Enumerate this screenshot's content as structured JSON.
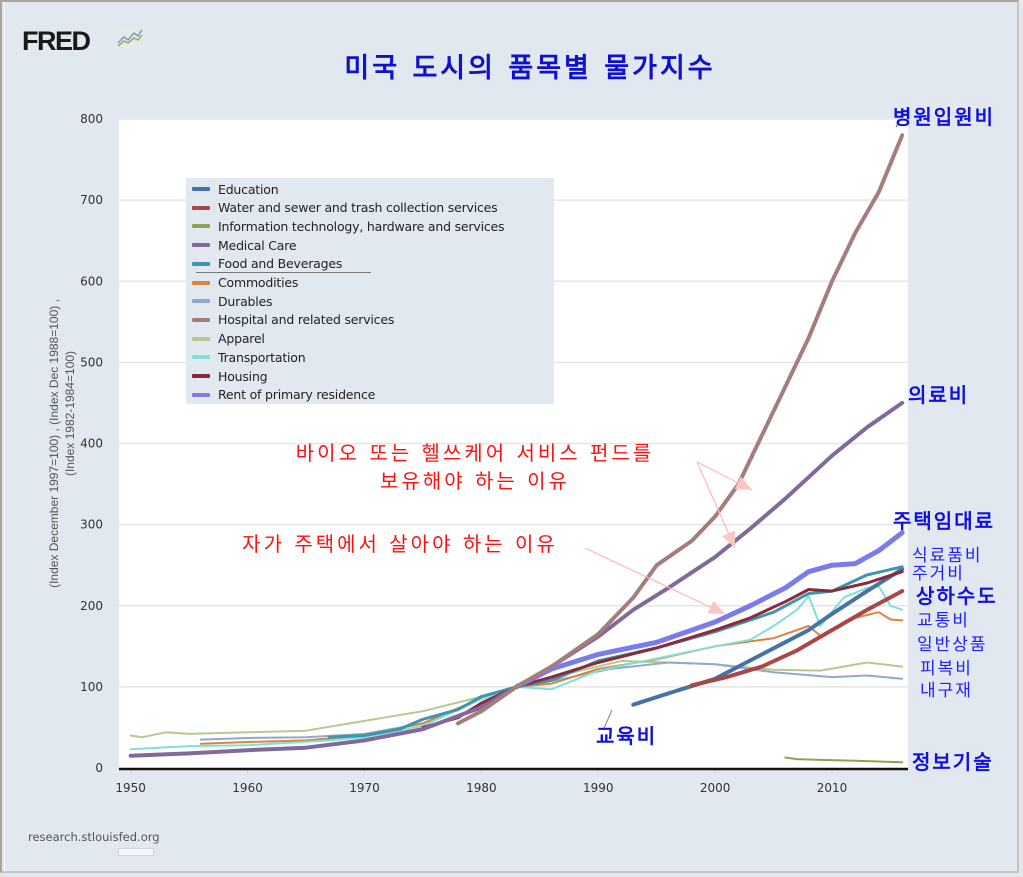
{
  "logo": {
    "text": "FRED",
    "icon": "fred-chart-icon"
  },
  "title": "미국 도시의 품목별 물가지수",
  "source": "research.stlouisfed.org",
  "annotations": {
    "hospital": "병원입원비",
    "medical": "의료비",
    "rent": "주택임대료",
    "food": "식료품비",
    "housing": "주거비",
    "water": "상하수도",
    "transport": "교통비",
    "commodities": "일반상품",
    "apparel": "피복비",
    "durables": "내구재",
    "education": "교육비",
    "it": "정보기술",
    "health_fund_line1": "바이오 또는 헬쓰케어 서비스 펀드를",
    "health_fund_line2": "보유해야 하는 이유",
    "own_home": "자가 주택에서 살아야 하는 이유"
  },
  "chart_data": {
    "type": "line",
    "title": "미국 도시의 품목별 물가지수",
    "xlabel": "",
    "ylabel": "(Index December 1997=100) , (Index Dec 1988=100) , (Index 1982-1984=100)",
    "ylabel_line1": "(Index December 1997=100) , (Index Dec 1988=100) ,",
    "ylabel_line2": "(Index 1982-1984=100)",
    "xlim": [
      1949,
      2016.5
    ],
    "ylim": [
      0,
      800
    ],
    "yticks": [
      0,
      100,
      200,
      300,
      400,
      500,
      600,
      700,
      800
    ],
    "xticks": [
      1950,
      1960,
      1970,
      1980,
      1990,
      2000,
      2010
    ],
    "grid": true,
    "legend_position": "top-left",
    "series": [
      {
        "name": "Education",
        "color": "#4572a7",
        "width": 4,
        "points": [
          [
            1993,
            78
          ],
          [
            1996,
            92
          ],
          [
            2000,
            110
          ],
          [
            2004,
            140
          ],
          [
            2008,
            170
          ],
          [
            2010,
            190
          ],
          [
            2013,
            218
          ],
          [
            2016,
            245
          ]
        ]
      },
      {
        "name": "Water and sewer and trash collection services",
        "color": "#aa4643",
        "width": 4,
        "points": [
          [
            1998,
            102
          ],
          [
            2001,
            112
          ],
          [
            2004,
            125
          ],
          [
            2007,
            145
          ],
          [
            2010,
            170
          ],
          [
            2013,
            195
          ],
          [
            2016,
            218
          ]
        ]
      },
      {
        "name": "Information technology, hardware and services",
        "color": "#89a54e",
        "width": 2,
        "points": [
          [
            2006,
            13
          ],
          [
            2007,
            11
          ],
          [
            2009,
            10
          ],
          [
            2012,
            9
          ],
          [
            2016,
            7
          ]
        ]
      },
      {
        "name": "Medical Care",
        "color": "#80699b",
        "width": 4,
        "points": [
          [
            1950,
            15
          ],
          [
            1955,
            18
          ],
          [
            1960,
            22
          ],
          [
            1965,
            25
          ],
          [
            1970,
            34
          ],
          [
            1975,
            48
          ],
          [
            1980,
            75
          ],
          [
            1983,
            100
          ],
          [
            1986,
            125
          ],
          [
            1990,
            162
          ],
          [
            1993,
            195
          ],
          [
            1996,
            222
          ],
          [
            2000,
            260
          ],
          [
            2003,
            295
          ],
          [
            2006,
            332
          ],
          [
            2010,
            385
          ],
          [
            2013,
            420
          ],
          [
            2016,
            450
          ]
        ]
      },
      {
        "name": "Food and Beverages",
        "color": "#3d96ae",
        "width": 3,
        "points": [
          [
            1967,
            38
          ],
          [
            1970,
            40
          ],
          [
            1973,
            48
          ],
          [
            1975,
            60
          ],
          [
            1978,
            72
          ],
          [
            1980,
            88
          ],
          [
            1983,
            100
          ],
          [
            1986,
            108
          ],
          [
            1990,
            132
          ],
          [
            1995,
            148
          ],
          [
            2000,
            168
          ],
          [
            2005,
            192
          ],
          [
            2008,
            215
          ],
          [
            2010,
            218
          ],
          [
            2013,
            238
          ],
          [
            2016,
            248
          ]
        ]
      },
      {
        "name": "Commodities",
        "color": "#db843d",
        "width": 2,
        "points": [
          [
            1956,
            30
          ],
          [
            1960,
            32
          ],
          [
            1965,
            34
          ],
          [
            1970,
            40
          ],
          [
            1975,
            55
          ],
          [
            1980,
            86
          ],
          [
            1983,
            100
          ],
          [
            1986,
            104
          ],
          [
            1990,
            122
          ],
          [
            1995,
            134
          ],
          [
            2000,
            150
          ],
          [
            2005,
            160
          ],
          [
            2008,
            175
          ],
          [
            2009,
            163
          ],
          [
            2012,
            185
          ],
          [
            2014,
            192
          ],
          [
            2015,
            183
          ],
          [
            2016,
            182
          ]
        ]
      },
      {
        "name": "Durables",
        "color": "#92a8cd",
        "width": 2,
        "points": [
          [
            1956,
            35
          ],
          [
            1960,
            37
          ],
          [
            1965,
            38
          ],
          [
            1970,
            42
          ],
          [
            1975,
            55
          ],
          [
            1980,
            85
          ],
          [
            1983,
            100
          ],
          [
            1987,
            110
          ],
          [
            1991,
            122
          ],
          [
            1996,
            130
          ],
          [
            2000,
            128
          ],
          [
            2005,
            118
          ],
          [
            2010,
            112
          ],
          [
            2013,
            114
          ],
          [
            2016,
            110
          ]
        ]
      },
      {
        "name": "Hospital and related services",
        "color": "#a47d7c",
        "width": 4,
        "points": [
          [
            1978,
            55
          ],
          [
            1980,
            70
          ],
          [
            1983,
            100
          ],
          [
            1986,
            125
          ],
          [
            1990,
            165
          ],
          [
            1993,
            210
          ],
          [
            1995,
            250
          ],
          [
            1998,
            280
          ],
          [
            2000,
            310
          ],
          [
            2002,
            350
          ],
          [
            2004,
            410
          ],
          [
            2006,
            470
          ],
          [
            2008,
            530
          ],
          [
            2010,
            600
          ],
          [
            2012,
            660
          ],
          [
            2014,
            710
          ],
          [
            2016,
            780
          ]
        ]
      },
      {
        "name": "Apparel",
        "color": "#b5ca92",
        "width": 2,
        "points": [
          [
            1950,
            40
          ],
          [
            1951,
            38
          ],
          [
            1953,
            44
          ],
          [
            1955,
            42
          ],
          [
            1960,
            44
          ],
          [
            1965,
            46
          ],
          [
            1970,
            58
          ],
          [
            1975,
            70
          ],
          [
            1980,
            88
          ],
          [
            1983,
            100
          ],
          [
            1987,
            115
          ],
          [
            1992,
            132
          ],
          [
            1996,
            130
          ],
          [
            2000,
            128
          ],
          [
            2005,
            121
          ],
          [
            2009,
            120
          ],
          [
            2013,
            130
          ],
          [
            2016,
            125
          ]
        ]
      },
      {
        "name": "Transportation",
        "color": "#80e0d8",
        "width": 2,
        "points": [
          [
            1950,
            23
          ],
          [
            1955,
            27
          ],
          [
            1960,
            28
          ],
          [
            1967,
            34
          ],
          [
            1970,
            38
          ],
          [
            1975,
            52
          ],
          [
            1980,
            85
          ],
          [
            1983,
            100
          ],
          [
            1986,
            97
          ],
          [
            1990,
            120
          ],
          [
            1995,
            135
          ],
          [
            2000,
            150
          ],
          [
            2003,
            158
          ],
          [
            2005,
            175
          ],
          [
            2007,
            195
          ],
          [
            2008,
            212
          ],
          [
            2009,
            175
          ],
          [
            2011,
            210
          ],
          [
            2013,
            222
          ],
          [
            2014,
            224
          ],
          [
            2015,
            200
          ],
          [
            2016,
            195
          ]
        ]
      },
      {
        "name": "Housing",
        "color": "#8b2a3a",
        "width": 3,
        "points": [
          [
            1975,
            50
          ],
          [
            1978,
            62
          ],
          [
            1980,
            80
          ],
          [
            1983,
            100
          ],
          [
            1986,
            112
          ],
          [
            1990,
            130
          ],
          [
            1995,
            148
          ],
          [
            2000,
            170
          ],
          [
            2003,
            185
          ],
          [
            2006,
            205
          ],
          [
            2008,
            220
          ],
          [
            2010,
            218
          ],
          [
            2013,
            228
          ],
          [
            2016,
            242
          ]
        ]
      },
      {
        "name": "Rent of primary residence",
        "color": "#7b7bf0",
        "width": 5,
        "points": [
          [
            1983,
            100
          ],
          [
            1986,
            122
          ],
          [
            1990,
            140
          ],
          [
            1995,
            155
          ],
          [
            2000,
            180
          ],
          [
            2003,
            200
          ],
          [
            2006,
            222
          ],
          [
            2008,
            242
          ],
          [
            2010,
            250
          ],
          [
            2012,
            252
          ],
          [
            2014,
            268
          ],
          [
            2016,
            290
          ]
        ]
      }
    ]
  }
}
